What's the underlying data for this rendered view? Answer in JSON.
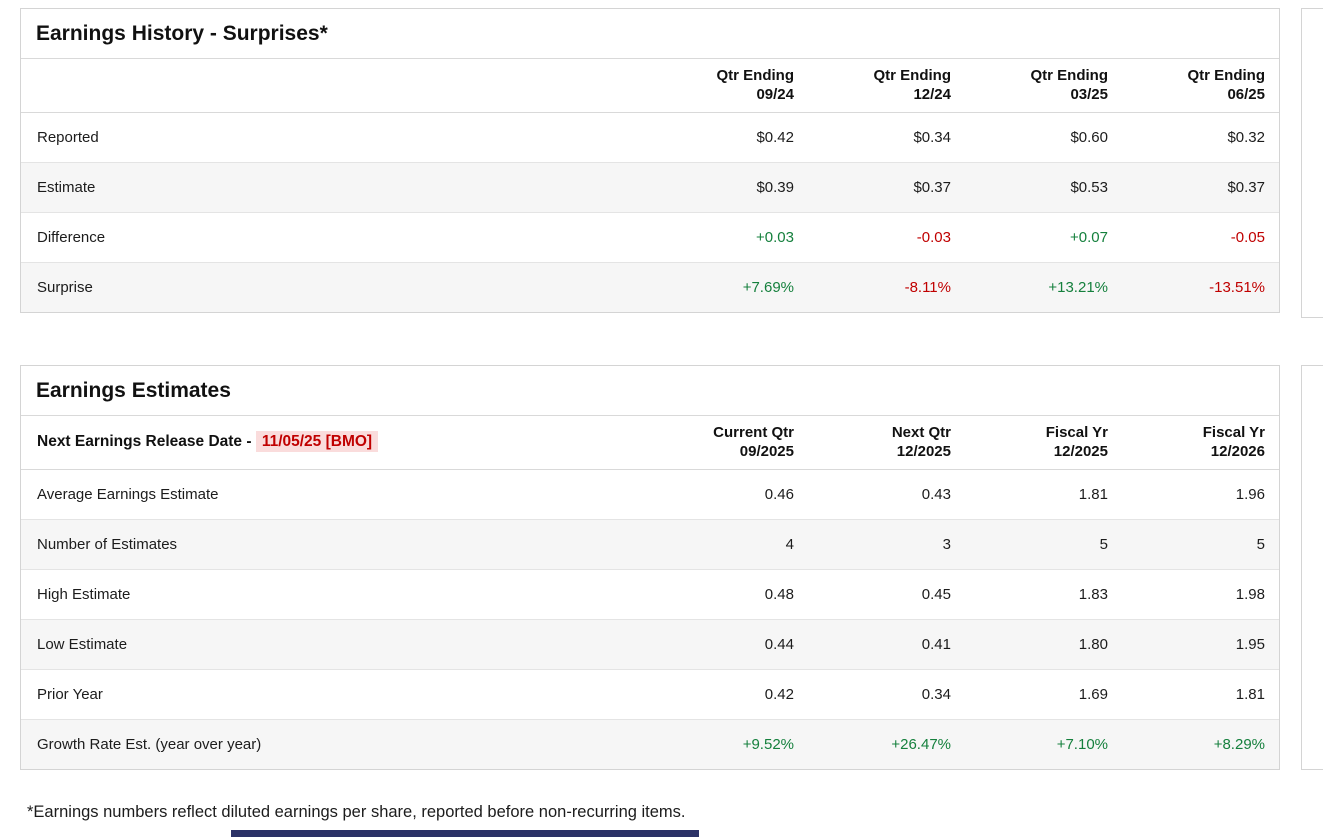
{
  "colors": {
    "positive": "#15803d",
    "negative": "#c00000",
    "date-red": "#c00000",
    "date-bg": "#fadcdc"
  },
  "earnings_history": {
    "title": "Earnings History - Surprises*",
    "columns": [
      {
        "line1": "Qtr Ending",
        "line2": "09/24"
      },
      {
        "line1": "Qtr Ending",
        "line2": "12/24"
      },
      {
        "line1": "Qtr Ending",
        "line2": "03/25"
      },
      {
        "line1": "Qtr Ending",
        "line2": "06/25"
      }
    ],
    "rows": [
      {
        "label": "Reported",
        "values": [
          "$0.42",
          "$0.34",
          "$0.60",
          "$0.32"
        ]
      },
      {
        "label": "Estimate",
        "values": [
          "$0.39",
          "$0.37",
          "$0.53",
          "$0.37"
        ]
      },
      {
        "label": "Difference",
        "values": [
          "+0.03",
          "-0.03",
          "+0.07",
          "-0.05"
        ]
      },
      {
        "label": "Surprise",
        "values": [
          "+7.69%",
          "-8.11%",
          "+13.21%",
          "-13.51%"
        ]
      }
    ]
  },
  "earnings_estimates": {
    "title": "Earnings Estimates",
    "release_label": "Next Earnings Release Date - ",
    "release_date": "11/05/25 [BMO]",
    "columns": [
      {
        "line1": "Current Qtr",
        "line2": "09/2025"
      },
      {
        "line1": "Next Qtr",
        "line2": "12/2025"
      },
      {
        "line1": "Fiscal Yr",
        "line2": "12/2025"
      },
      {
        "line1": "Fiscal Yr",
        "line2": "12/2026"
      }
    ],
    "rows": [
      {
        "label": "Average Earnings Estimate",
        "values": [
          "0.46",
          "0.43",
          "1.81",
          "1.96"
        ]
      },
      {
        "label": "Number of Estimates",
        "values": [
          "4",
          "3",
          "5",
          "5"
        ]
      },
      {
        "label": "High Estimate",
        "values": [
          "0.48",
          "0.45",
          "1.83",
          "1.98"
        ]
      },
      {
        "label": "Low Estimate",
        "values": [
          "0.44",
          "0.41",
          "1.80",
          "1.95"
        ]
      },
      {
        "label": "Prior Year",
        "values": [
          "0.42",
          "0.34",
          "1.69",
          "1.81"
        ]
      },
      {
        "label": "Growth Rate Est. (year over year)",
        "values": [
          "+9.52%",
          "+26.47%",
          "+7.10%",
          "+8.29%"
        ]
      }
    ]
  },
  "footnote": "*Earnings numbers reflect diluted earnings per share, reported before non-recurring items."
}
